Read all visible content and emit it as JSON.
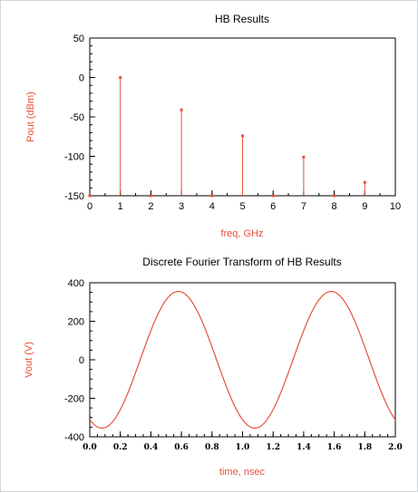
{
  "colors": {
    "series": "#e8503a",
    "axis": "#000000",
    "label": "#e8503a"
  },
  "chart_data": [
    {
      "type": "bar",
      "title": "HB Results",
      "xlabel": "freq, GHz",
      "ylabel": "Pout (dBm)",
      "xlim": [
        0,
        10
      ],
      "ylim": [
        -150,
        50
      ],
      "xticks": [
        "0",
        "1",
        "2",
        "3",
        "4",
        "5",
        "6",
        "7",
        "8",
        "9",
        "10"
      ],
      "yticks": [
        "50",
        "0",
        "-50",
        "-100",
        "-150"
      ],
      "x": [
        0,
        1,
        2,
        3,
        4,
        5,
        6,
        7,
        8,
        9
      ],
      "values": [
        -150,
        0,
        -150,
        -41,
        -150,
        -74,
        -150,
        -101,
        -150,
        -133
      ],
      "grid": false
    },
    {
      "type": "line",
      "title": "Discrete Fourier Transform of HB Results",
      "xlabel": "time, nsec",
      "ylabel": "Vout (V)",
      "xlim": [
        0,
        2
      ],
      "ylim": [
        -400,
        400
      ],
      "xticks": [
        "0.0",
        "0.2",
        "0.4",
        "0.6",
        "0.8",
        "1.0",
        "1.2",
        "1.4",
        "1.6",
        "1.8",
        "2.0"
      ],
      "yticks": [
        "400",
        "200",
        "0",
        "-200",
        "-400"
      ],
      "amplitude": 355,
      "period": 1.0,
      "peak_time": 0.58,
      "grid": false
    }
  ]
}
